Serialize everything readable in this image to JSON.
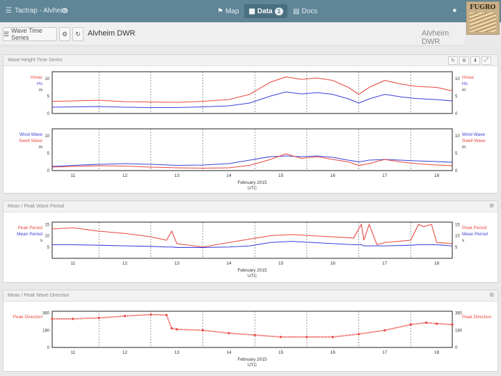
{
  "app": {
    "title": "Tactrap - Alvheim"
  },
  "nav": [
    {
      "label": "Map",
      "icon": "map-icon"
    },
    {
      "label": "Data",
      "icon": "table-icon",
      "badge": "1"
    },
    {
      "label": "Docs",
      "icon": "doc-icon"
    }
  ],
  "logo": {
    "text": "FUGRO"
  },
  "toolbar": {
    "series_button": "Wave Time Series",
    "station": "Alvheim DWR",
    "station_right": "Alvheim DWR"
  },
  "panels": {
    "wave_height": {
      "title": "Wave Height Time Series"
    },
    "wave_period": {
      "title": "Mean / Peak Wave Period"
    },
    "wave_direction": {
      "title": "Mean / Peak Wave Direction"
    }
  },
  "colors": {
    "red": "#e8473f",
    "blue": "#3a3fd8",
    "bar": "#5f8596"
  },
  "chart_data": [
    {
      "type": "line",
      "title": "",
      "xlabel": "February 2015\nUTC",
      "x_ticks": [
        "11",
        "12",
        "13",
        "14",
        "15",
        "16",
        "17",
        "18"
      ],
      "x": [
        10.6,
        11.0,
        11.5,
        12.0,
        12.5,
        13.0,
        13.5,
        14.0,
        14.4,
        14.8,
        15.1,
        15.4,
        15.7,
        16.0,
        16.3,
        16.5,
        16.7,
        17.0,
        17.3,
        17.6,
        18.0,
        18.3
      ],
      "ylabel_left": [
        "Hmax",
        "Hs",
        "m"
      ],
      "ylim": [
        0,
        12
      ],
      "y_ticks": [
        0,
        5,
        10
      ],
      "series": [
        {
          "name": "Hmax",
          "color": "#e8473f",
          "values": [
            3.5,
            3.6,
            3.8,
            3.4,
            3.3,
            3.2,
            3.5,
            4.0,
            5.5,
            9.0,
            10.5,
            9.8,
            10.2,
            9.5,
            7.5,
            5.5,
            7.5,
            9.5,
            8.5,
            7.8,
            7.5,
            6.5
          ]
        },
        {
          "name": "Hs",
          "color": "#3a3fd8",
          "values": [
            1.8,
            1.9,
            2.0,
            1.8,
            1.7,
            1.7,
            1.9,
            2.2,
            3.0,
            5.0,
            6.2,
            5.6,
            6.0,
            5.5,
            4.2,
            3.0,
            4.2,
            5.5,
            4.8,
            4.3,
            4.0,
            3.6
          ]
        }
      ]
    },
    {
      "type": "line",
      "title": "",
      "xlabel": "February 2015\nUTC",
      "x_ticks": [
        "11",
        "12",
        "13",
        "14",
        "15",
        "16",
        "17",
        "18"
      ],
      "x": [
        10.6,
        11.0,
        11.5,
        12.0,
        12.5,
        13.0,
        13.5,
        14.0,
        14.4,
        14.8,
        15.1,
        15.4,
        15.7,
        16.0,
        16.3,
        16.5,
        16.7,
        17.0,
        17.3,
        17.6,
        18.0,
        18.3
      ],
      "ylabel_left": [
        "Wind Wave",
        "Swell Wave",
        "m"
      ],
      "ylim": [
        0,
        12
      ],
      "y_ticks": [
        0,
        5,
        10
      ],
      "series": [
        {
          "name": "Wind Wave",
          "color": "#3a3fd8",
          "values": [
            1.2,
            1.5,
            1.8,
            2.0,
            1.8,
            1.5,
            1.6,
            2.0,
            3.0,
            4.0,
            4.2,
            4.0,
            4.2,
            3.8,
            3.0,
            2.5,
            3.0,
            3.2,
            3.0,
            2.8,
            2.6,
            2.4
          ]
        },
        {
          "name": "Swell Wave",
          "color": "#e8473f",
          "values": [
            1.0,
            1.2,
            1.4,
            1.3,
            1.0,
            0.8,
            0.7,
            0.8,
            1.5,
            3.2,
            4.8,
            3.5,
            4.0,
            3.2,
            2.5,
            1.5,
            2.0,
            3.2,
            2.5,
            2.0,
            1.6,
            1.4
          ]
        }
      ]
    },
    {
      "type": "line",
      "title": "",
      "xlabel": "February 2015\nUTC",
      "x_ticks": [
        "11",
        "12",
        "13",
        "14",
        "15",
        "16",
        "17",
        "18"
      ],
      "x": [
        10.6,
        11.0,
        11.5,
        12.0,
        12.5,
        12.8,
        12.9,
        13.0,
        13.5,
        14.0,
        14.4,
        14.8,
        15.2,
        15.6,
        16.0,
        16.4,
        16.55,
        16.6,
        16.7,
        16.85,
        17.0,
        17.5,
        17.65,
        17.75,
        17.9,
        18.0,
        18.3
      ],
      "ylabel_left": [
        "Peak Period",
        "Mean Period",
        "s"
      ],
      "ylim": [
        0,
        16
      ],
      "y_ticks": [
        5,
        10,
        15
      ],
      "series": [
        {
          "name": "Peak Period",
          "color": "#e8473f",
          "values": [
            13,
            13.5,
            12,
            11,
            9.5,
            8,
            12,
            6.5,
            5,
            7,
            8.5,
            10,
            10.5,
            10,
            9.5,
            9,
            15,
            8,
            15,
            6,
            7,
            8,
            15,
            14,
            15,
            7,
            6.5
          ]
        },
        {
          "name": "Mean Period",
          "color": "#3a3fd8",
          "values": [
            6,
            6,
            5.8,
            5.5,
            5.3,
            5,
            5,
            4.8,
            4.8,
            5,
            5.5,
            7,
            7.5,
            7,
            6.5,
            6,
            6,
            5.5,
            5.5,
            5.5,
            5.5,
            5.8,
            6,
            6,
            6,
            6,
            5.5
          ]
        }
      ]
    },
    {
      "type": "scatter",
      "title": "",
      "xlabel": "February 2015\nUTC",
      "x_ticks": [
        "11",
        "12",
        "13",
        "14",
        "15",
        "16",
        "17",
        "18"
      ],
      "x": [
        10.6,
        11.0,
        11.5,
        12.0,
        12.5,
        12.8,
        12.9,
        13.0,
        13.5,
        14.0,
        14.5,
        15.0,
        15.5,
        16.0,
        16.5,
        17.0,
        17.5,
        17.8,
        18.0,
        18.3
      ],
      "ylabel_left": [
        "Peak Direction"
      ],
      "ylim": [
        0,
        380
      ],
      "y_ticks": [
        0,
        180,
        360
      ],
      "series": [
        {
          "name": "Peak Direction",
          "color": "#e8473f",
          "values": [
            300,
            300,
            310,
            330,
            345,
            340,
            200,
            190,
            180,
            150,
            130,
            110,
            110,
            110,
            140,
            180,
            240,
            260,
            250,
            240
          ]
        }
      ]
    }
  ]
}
